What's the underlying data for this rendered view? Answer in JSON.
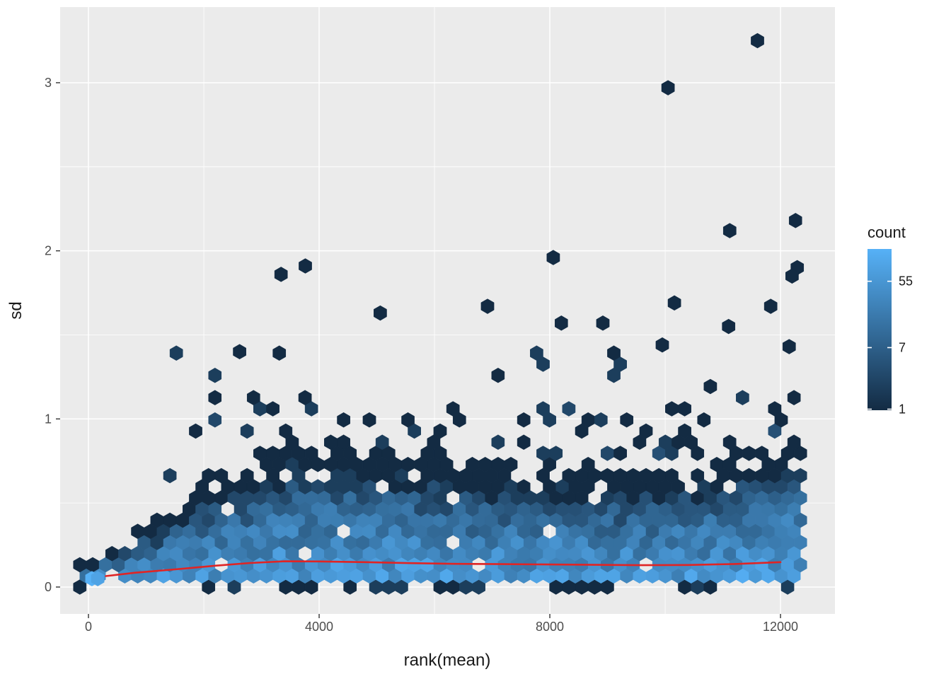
{
  "chart_data": {
    "type": "hexbin",
    "title": "",
    "xlabel": "rank(mean)",
    "ylabel": "sd",
    "x_ticks": [
      0,
      4000,
      8000,
      12000
    ],
    "x_minor_ticks": [
      2000,
      6000,
      10000
    ],
    "y_ticks": [
      0,
      1,
      2,
      3
    ],
    "y_minor_ticks": [
      0.5,
      1.5,
      2.5
    ],
    "xlim": [
      -491,
      12944
    ],
    "ylim": [
      -0.16,
      3.45
    ],
    "panel_background": "#EBEBEB",
    "grid_color": "#FFFFFF",
    "tick_color": "#333333",
    "tick_label_color": "#4D4D4D",
    "axis_title_color": "#1A1A1A",
    "hex_radius_px": 10.5,
    "legend": {
      "title": "count",
      "ticks": [
        55,
        7,
        1
      ],
      "scale": "log",
      "max_count": 150,
      "color_low": "#132B43",
      "color_high": "#56B1F7"
    },
    "smooth_line": {
      "color": "#E02424",
      "width": 2.6,
      "points": [
        [
          300,
          0.065
        ],
        [
          800,
          0.085
        ],
        [
          1500,
          0.105
        ],
        [
          2200,
          0.127
        ],
        [
          2800,
          0.143
        ],
        [
          3400,
          0.153
        ],
        [
          4000,
          0.152
        ],
        [
          4800,
          0.148
        ],
        [
          5600,
          0.142
        ],
        [
          6400,
          0.138
        ],
        [
          7200,
          0.136
        ],
        [
          8000,
          0.134
        ],
        [
          8800,
          0.132
        ],
        [
          9600,
          0.13
        ],
        [
          10400,
          0.131
        ],
        [
          11200,
          0.137
        ],
        [
          12000,
          0.148
        ]
      ]
    },
    "hexbin_model": {
      "seed": 1337,
      "x_min": -150,
      "x_max": 12450,
      "envelope": [
        [
          -150,
          0.14
        ],
        [
          0,
          0.16
        ],
        [
          500,
          0.26
        ],
        [
          1000,
          0.38
        ],
        [
          1500,
          0.5
        ],
        [
          2000,
          0.62
        ],
        [
          2500,
          0.72
        ],
        [
          3000,
          0.82
        ],
        [
          3500,
          0.9
        ],
        [
          4200,
          0.88
        ],
        [
          5000,
          0.85
        ],
        [
          6000,
          0.8
        ],
        [
          7000,
          0.78
        ],
        [
          8000,
          0.75
        ],
        [
          9000,
          0.72
        ],
        [
          10000,
          0.72
        ],
        [
          11000,
          0.78
        ],
        [
          12000,
          0.9
        ],
        [
          12450,
          0.95
        ]
      ],
      "base_count": 65,
      "decay_exponent": 2.6,
      "bottom_row_probability": 0.38,
      "scatter_top": 1.52,
      "scatter_prob": 0.16,
      "hot_cells": [
        [
          60,
          0.05,
          150
        ],
        [
          160,
          0.05,
          90
        ]
      ],
      "outliers": [
        [
          11600,
          3.25
        ],
        [
          10050,
          2.97
        ],
        [
          12260,
          2.18
        ],
        [
          11120,
          2.12
        ],
        [
          8060,
          1.96
        ],
        [
          3760,
          1.91
        ],
        [
          12290,
          1.9
        ],
        [
          3340,
          1.86
        ],
        [
          12200,
          1.85
        ],
        [
          10160,
          1.69
        ],
        [
          11830,
          1.67
        ],
        [
          6920,
          1.67
        ],
        [
          5060,
          1.63
        ],
        [
          8920,
          1.57
        ],
        [
          8200,
          1.57
        ],
        [
          11100,
          1.55
        ],
        [
          2620,
          1.4
        ],
        [
          9950,
          1.44
        ],
        [
          12150,
          1.43
        ]
      ]
    }
  }
}
